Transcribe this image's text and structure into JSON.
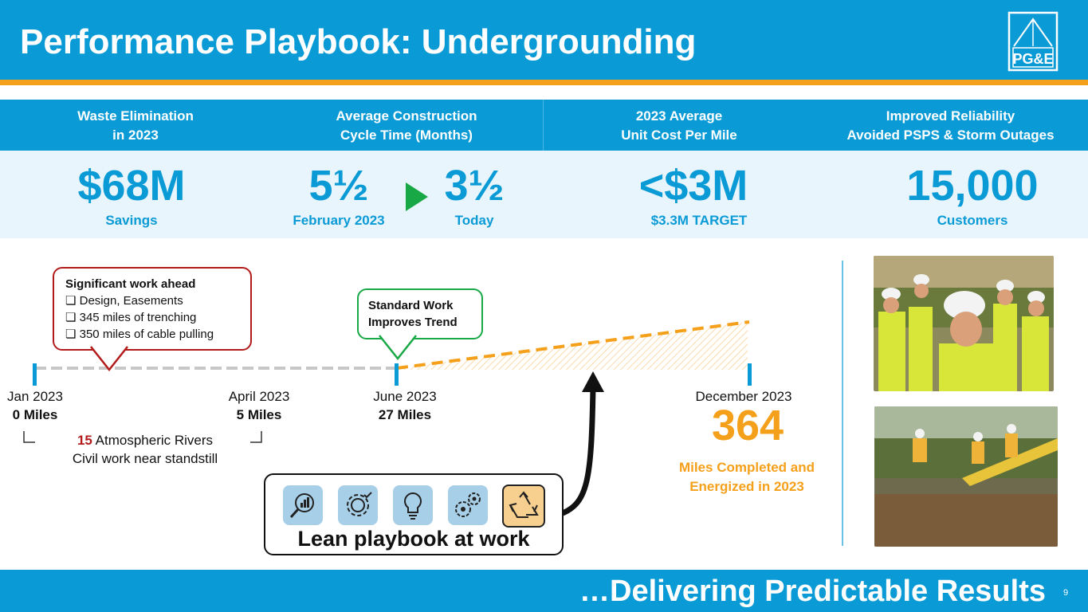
{
  "header": {
    "title": "Performance Playbook: Undergrounding",
    "logo_text": "PG&E"
  },
  "kpis": {
    "waste": {
      "heading_line1": "Waste Elimination",
      "heading_line2": "in 2023",
      "value": "$68M",
      "label": "Savings"
    },
    "cycle": {
      "heading_line1": "Average Construction",
      "heading_line2": "Cycle Time (Months)",
      "from_value": "5½",
      "from_label": "February 2023",
      "to_value": "3½",
      "to_label": "Today"
    },
    "cost": {
      "heading_line1": "2023 Average",
      "heading_line2": "Unit Cost Per Mile",
      "value": "<$3M",
      "label": "$3.3M TARGET"
    },
    "reliability": {
      "heading_line1": "Improved Reliability",
      "heading_line2": "Avoided PSPS & Storm Outages",
      "value": "15,000",
      "label": "Customers"
    }
  },
  "timeline": {
    "jan": {
      "date": "Jan 2023",
      "miles": "0 Miles"
    },
    "apr": {
      "date": "April 2023",
      "miles": "5 Miles"
    },
    "jun": {
      "date": "June 2023",
      "miles": "27 Miles"
    },
    "dec": {
      "date": "December 2023"
    },
    "rivers_count": "15",
    "rivers_text": " Atmospheric Rivers",
    "civil_text": "Civil work near standstill"
  },
  "callout_work": {
    "title": "Significant work ahead",
    "items": [
      "Design, Easements",
      "345 miles of trenching",
      "350 miles of cable pulling"
    ]
  },
  "callout_standard": {
    "line1": "Standard Work",
    "line2": "Improves Trend"
  },
  "result": {
    "value": "364",
    "line1": "Miles Completed and",
    "line2": "Energized in 2023"
  },
  "lean": {
    "label": "Lean playbook at work",
    "icons": [
      "magnifier-chart-icon",
      "gear-thumbs-up-icon",
      "lightbulb-gear-icon",
      "gears-icon",
      "recycle-icon"
    ]
  },
  "footer": {
    "text": "…Delivering Predictable Results",
    "page": "9"
  },
  "colors": {
    "brand_blue": "#0a9bd6",
    "accent_orange": "#f5a01a",
    "green": "#18a845",
    "red": "#b31b1b"
  }
}
